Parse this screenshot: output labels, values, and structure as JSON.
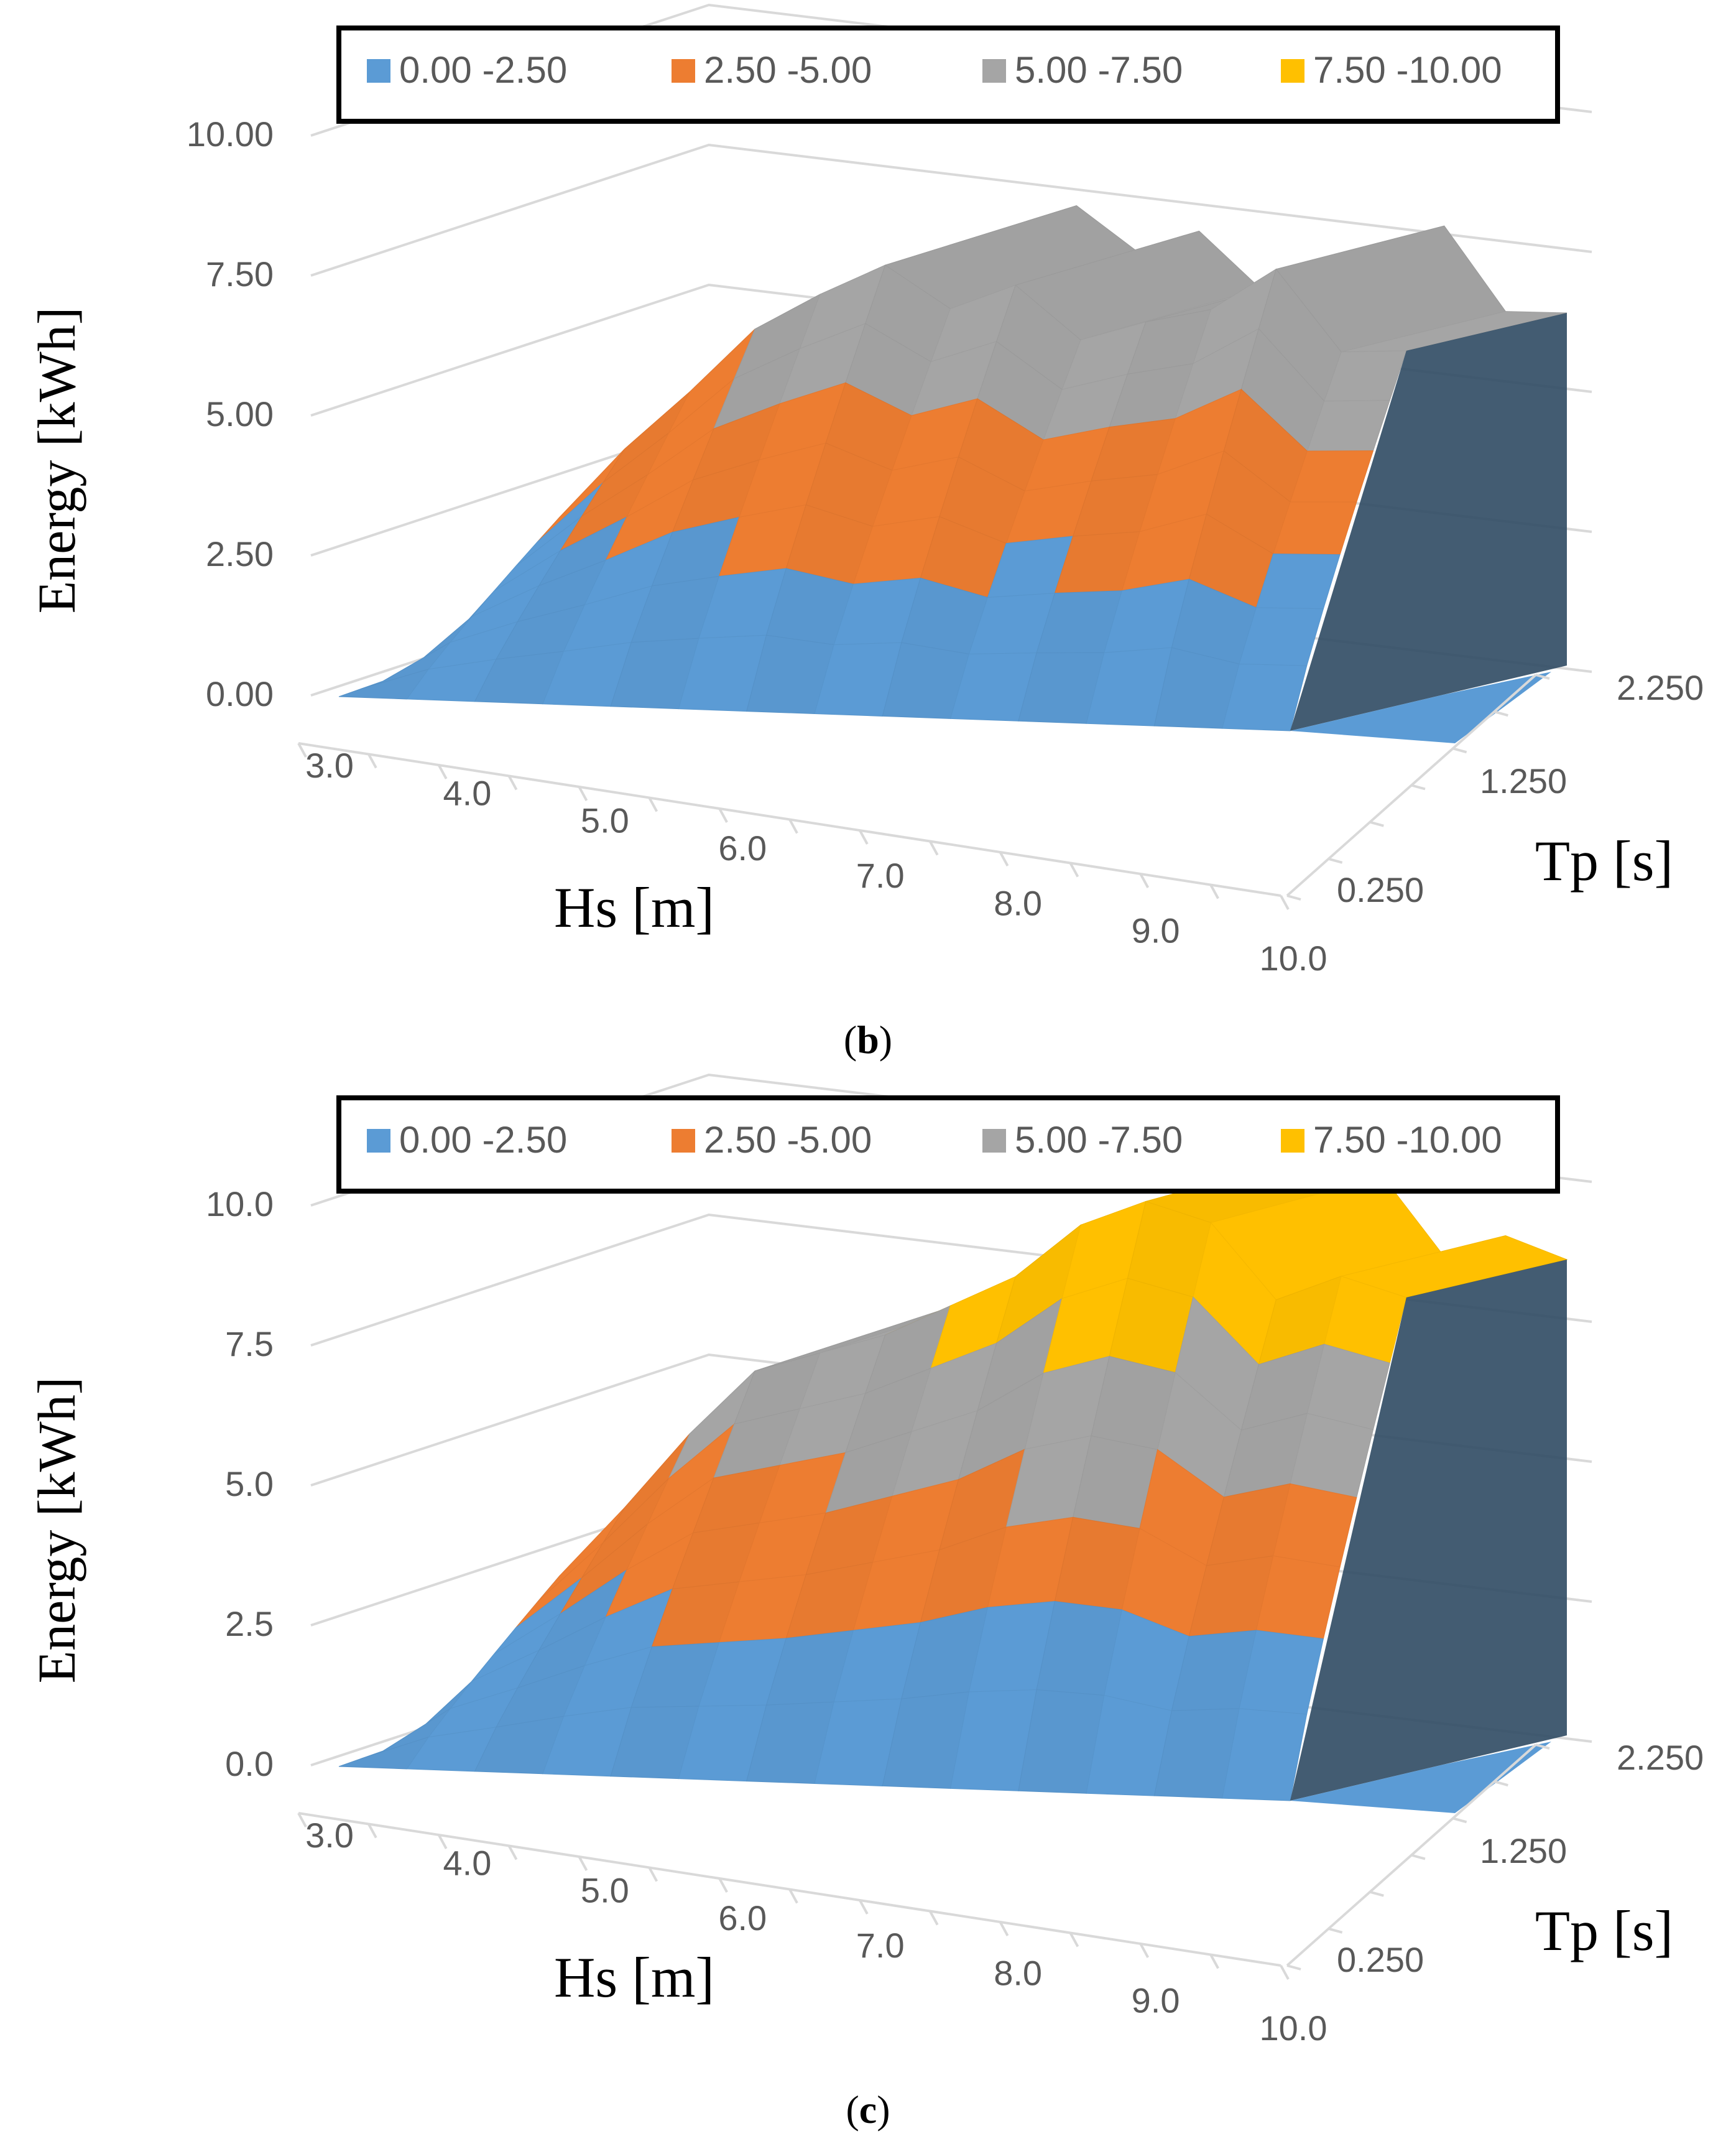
{
  "colors": {
    "band0": "#5B9BD5",
    "band1": "#ED7D31",
    "band2": "#A5A5A5",
    "band3": "#FFC000",
    "grid": "#D9D9D9",
    "axis_text": "#595959",
    "title_text": "#000000"
  },
  "chart_data": [
    {
      "type": "surface",
      "panel_label": "b",
      "legend": [
        "0.00 -2.50",
        "2.50 -5.00",
        "5.00 -7.50",
        "7.50 -10.00"
      ],
      "bands": [
        [
          0,
          2.5
        ],
        [
          2.5,
          5.0
        ],
        [
          5.0,
          7.5
        ],
        [
          7.5,
          10.0
        ]
      ],
      "zlabel": "Energy [kWh]",
      "xlabel": "Hs [m]",
      "ylabel": "Tp [s]",
      "z_ticks": [
        "0.00",
        "2.50",
        "5.00",
        "7.50",
        "10.00"
      ],
      "zlim": [
        0,
        10
      ],
      "x_ticks": [
        "3.0",
        "4.0",
        "5.0",
        "6.0",
        "7.0",
        "8.0",
        "9.0",
        "10.0"
      ],
      "y_ticks": [
        "0.250",
        "1.250",
        "2.250"
      ],
      "x": [
        3.0,
        3.5,
        4.0,
        4.5,
        5.0,
        5.5,
        6.0,
        6.5,
        7.0,
        7.5,
        8.0,
        8.5,
        9.0,
        9.5,
        10.0
      ],
      "ridge_values": [
        0.0,
        2.3,
        3.6,
        4.7,
        5.9,
        6.6,
        7.2,
        6.5,
        7.0,
        6.1,
        6.5,
        6.8,
        7.6,
        6.2,
        6.3
      ]
    },
    {
      "type": "surface",
      "panel_label": "c",
      "legend": [
        "0.00 -2.50",
        "2.50 -5.00",
        "5.00 -7.50",
        "7.50 -10.00"
      ],
      "bands": [
        [
          0,
          2.5
        ],
        [
          2.5,
          5.0
        ],
        [
          5.0,
          7.5
        ],
        [
          7.5,
          10.0
        ]
      ],
      "zlabel": "Energy [kWh]",
      "xlabel": "Hs [m]",
      "ylabel": "Tp [s]",
      "z_ticks": [
        "0.0",
        "2.5",
        "5.0",
        "7.5",
        "10.0"
      ],
      "zlim": [
        0,
        10
      ],
      "x_ticks": [
        "3.0",
        "4.0",
        "5.0",
        "6.0",
        "7.0",
        "8.0",
        "9.0",
        "10.0"
      ],
      "y_ticks": [
        "0.250",
        "1.250",
        "2.250"
      ],
      "x": [
        3.0,
        3.5,
        4.0,
        4.5,
        5.0,
        5.5,
        6.0,
        6.5,
        7.0,
        7.5,
        8.0,
        8.5,
        9.0,
        9.5,
        10.0
      ],
      "ridge_values": [
        0.0,
        2.5,
        3.8,
        5.2,
        6.4,
        6.8,
        7.2,
        7.8,
        8.4,
        9.4,
        9.9,
        9.6,
        8.3,
        8.8,
        8.5
      ]
    }
  ]
}
